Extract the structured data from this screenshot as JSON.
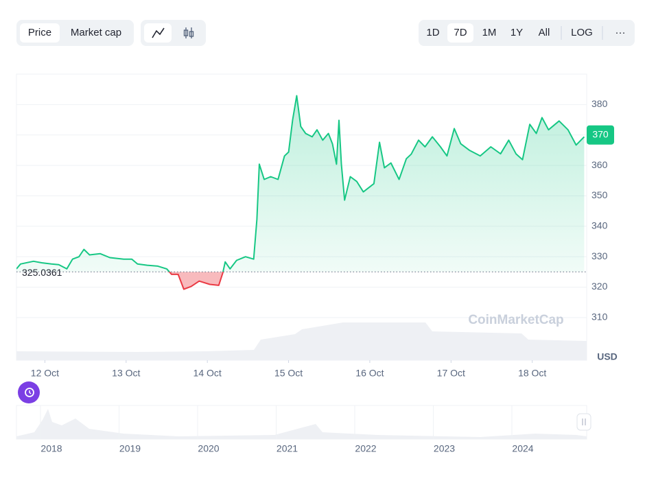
{
  "controls": {
    "mode": [
      "Price",
      "Market cap"
    ],
    "ranges": [
      "1D",
      "7D",
      "1M",
      "1Y",
      "All"
    ],
    "scale": "LOG",
    "more": "···"
  },
  "chart_data": {
    "type": "line",
    "x": [
      11.65,
      11.7,
      11.86,
      11.96,
      12.08,
      12.17,
      12.27,
      12.34,
      12.42,
      12.48,
      12.55,
      12.68,
      12.8,
      12.97,
      13.07,
      13.14,
      13.26,
      13.39,
      13.5,
      13.56,
      13.64,
      13.71,
      13.8,
      13.9,
      14.03,
      14.14,
      14.19,
      14.22,
      14.28,
      14.36,
      14.47,
      14.57,
      14.61,
      14.64,
      14.7,
      14.78,
      14.87,
      14.95,
      15.0,
      15.05,
      15.1,
      15.15,
      15.21,
      15.29,
      15.35,
      15.42,
      15.49,
      15.54,
      15.59,
      15.62,
      15.65,
      15.69,
      15.76,
      15.84,
      15.92,
      16.05,
      16.12,
      16.18,
      16.26,
      16.36,
      16.45,
      16.51,
      16.6,
      16.68,
      16.77,
      16.87,
      16.95,
      17.04,
      17.12,
      17.23,
      17.36,
      17.49,
      17.61,
      17.71,
      17.8,
      17.88,
      17.97,
      18.05,
      18.12,
      18.2,
      18.33,
      18.44,
      18.54,
      18.64
    ],
    "values": [
      326,
      327.6,
      328.5,
      328,
      327.6,
      327.4,
      326,
      329.2,
      330,
      332.4,
      330.6,
      331,
      329.7,
      329.2,
      329.2,
      327.6,
      327.2,
      326.9,
      326,
      324.2,
      324.2,
      319.3,
      320.2,
      322,
      320.9,
      320.6,
      324.7,
      328.3,
      326,
      328.8,
      330,
      329.2,
      342.3,
      360.4,
      355.4,
      356.3,
      355.4,
      363.1,
      364.4,
      375,
      382.9,
      372.8,
      370.5,
      369.4,
      371.7,
      368.3,
      370.5,
      367.1,
      360.4,
      374.8,
      360.4,
      348.6,
      356.3,
      354.7,
      351.3,
      354,
      367.6,
      359.2,
      360.8,
      355.4,
      362.2,
      363.7,
      368.3,
      366.1,
      369.4,
      366.1,
      363.1,
      372.1,
      367.1,
      364.9,
      363.1,
      366.1,
      363.8,
      368.3,
      363.8,
      361.9,
      373.5,
      370.5,
      375.7,
      371.7,
      374.6,
      371.7,
      366.7,
      369.4
    ],
    "color": "#16c784",
    "down_color": "#ea3943",
    "baseline": 325.0361,
    "current_value": 370,
    "xlim": [
      11.65,
      18.67
    ],
    "xticks": [
      {
        "value": 12,
        "label": "12 Oct"
      },
      {
        "value": 13,
        "label": "13 Oct"
      },
      {
        "value": 14,
        "label": "14 Oct"
      },
      {
        "value": 15,
        "label": "15 Oct"
      },
      {
        "value": 16,
        "label": "16 Oct"
      },
      {
        "value": 17,
        "label": "17 Oct"
      },
      {
        "value": 18,
        "label": "18 Oct"
      }
    ],
    "ylim": [
      296,
      390
    ],
    "yticks": [
      310,
      320,
      330,
      340,
      350,
      360,
      370,
      380
    ],
    "grid": true,
    "unit": "USD",
    "watermark": "CoinMarketCap",
    "navigator_labels": [
      "2018",
      "2019",
      "2020",
      "2021",
      "2022",
      "2023",
      "2024"
    ]
  }
}
